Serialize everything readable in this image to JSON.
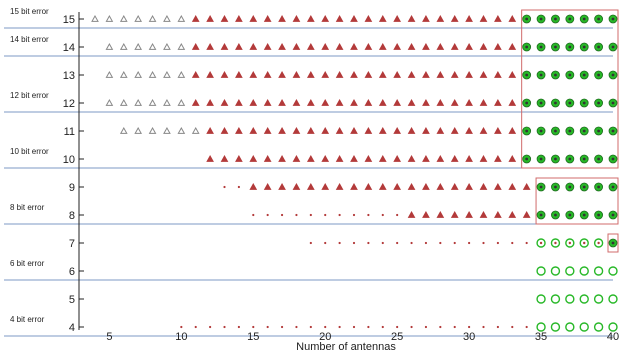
{
  "chart_data": {
    "type": "scatter",
    "xlabel": "Number of antennas",
    "ylabel": "",
    "xlim": [
      4,
      40
    ],
    "ylim": [
      4,
      15
    ],
    "x_ticks": [
      5,
      10,
      15,
      20,
      25,
      30,
      35,
      40
    ],
    "y_ticks": [
      4,
      5,
      6,
      7,
      8,
      9,
      10,
      11,
      12,
      13,
      14,
      15
    ],
    "grid": "horizontal lines at bit-error boundaries",
    "band_lines": [
      {
        "y": 15,
        "label": "15  bit error"
      },
      {
        "y": 14,
        "label": "14 bit error"
      },
      {
        "y": 12,
        "label": "12 bit error"
      },
      {
        "y": 10,
        "label": "10 bit error"
      },
      {
        "y": 8,
        "label": "8 bit error"
      },
      {
        "y": 6,
        "label": "6 bit error"
      },
      {
        "y": 4,
        "label": "4 bit error"
      }
    ],
    "rows": [
      {
        "y": 15,
        "gray_triangle": [
          4,
          10
        ],
        "red_triangle": [
          11,
          33
        ],
        "green_filled": [
          34,
          40
        ]
      },
      {
        "y": 14,
        "gray_triangle": [
          5,
          10
        ],
        "red_triangle": [
          11,
          33
        ],
        "green_filled": [
          34,
          40
        ]
      },
      {
        "y": 13,
        "gray_triangle": [
          5,
          10
        ],
        "red_triangle": [
          11,
          33
        ],
        "green_filled": [
          34,
          40
        ]
      },
      {
        "y": 12,
        "gray_triangle": [
          5,
          10
        ],
        "red_triangle": [
          11,
          33
        ],
        "green_filled": [
          34,
          40
        ]
      },
      {
        "y": 11,
        "gray_triangle": [
          6,
          11
        ],
        "red_triangle": [
          12,
          33
        ],
        "green_filled": [
          34,
          40
        ]
      },
      {
        "y": 10,
        "red_triangle": [
          12,
          33
        ],
        "green_filled": [
          34,
          40
        ]
      },
      {
        "y": 9,
        "red_dot": [
          13,
          14
        ],
        "red_triangle": [
          15,
          34
        ],
        "green_filled": [
          35,
          40
        ]
      },
      {
        "y": 8,
        "red_dot": [
          15,
          25
        ],
        "red_triangle": [
          26,
          34
        ],
        "green_filled": [
          35,
          40
        ]
      },
      {
        "y": 7,
        "red_dot": [
          19,
          34
        ],
        "green_dotted_circle": [
          35,
          39
        ],
        "green_filled": [
          40,
          40
        ]
      },
      {
        "y": 6,
        "green_circle": [
          35,
          40
        ]
      },
      {
        "y": 5,
        "green_circle": [
          35,
          40
        ]
      },
      {
        "y": 4,
        "red_dot": [
          10,
          34
        ],
        "green_circle": [
          35,
          40
        ]
      }
    ],
    "boxes": [
      {
        "x": [
          34,
          40
        ],
        "y": [
          10,
          15
        ]
      },
      {
        "x": [
          35,
          40
        ],
        "y": [
          8,
          9
        ]
      },
      {
        "x": [
          40,
          40
        ],
        "y": [
          7,
          7
        ]
      }
    ],
    "colors": {
      "gray": "#888888",
      "red": "#b33a3a",
      "green": "#27b827",
      "dark_green": "#1f6b1f",
      "band_line": "#7d9ac4",
      "box": "#d06b6b"
    }
  }
}
